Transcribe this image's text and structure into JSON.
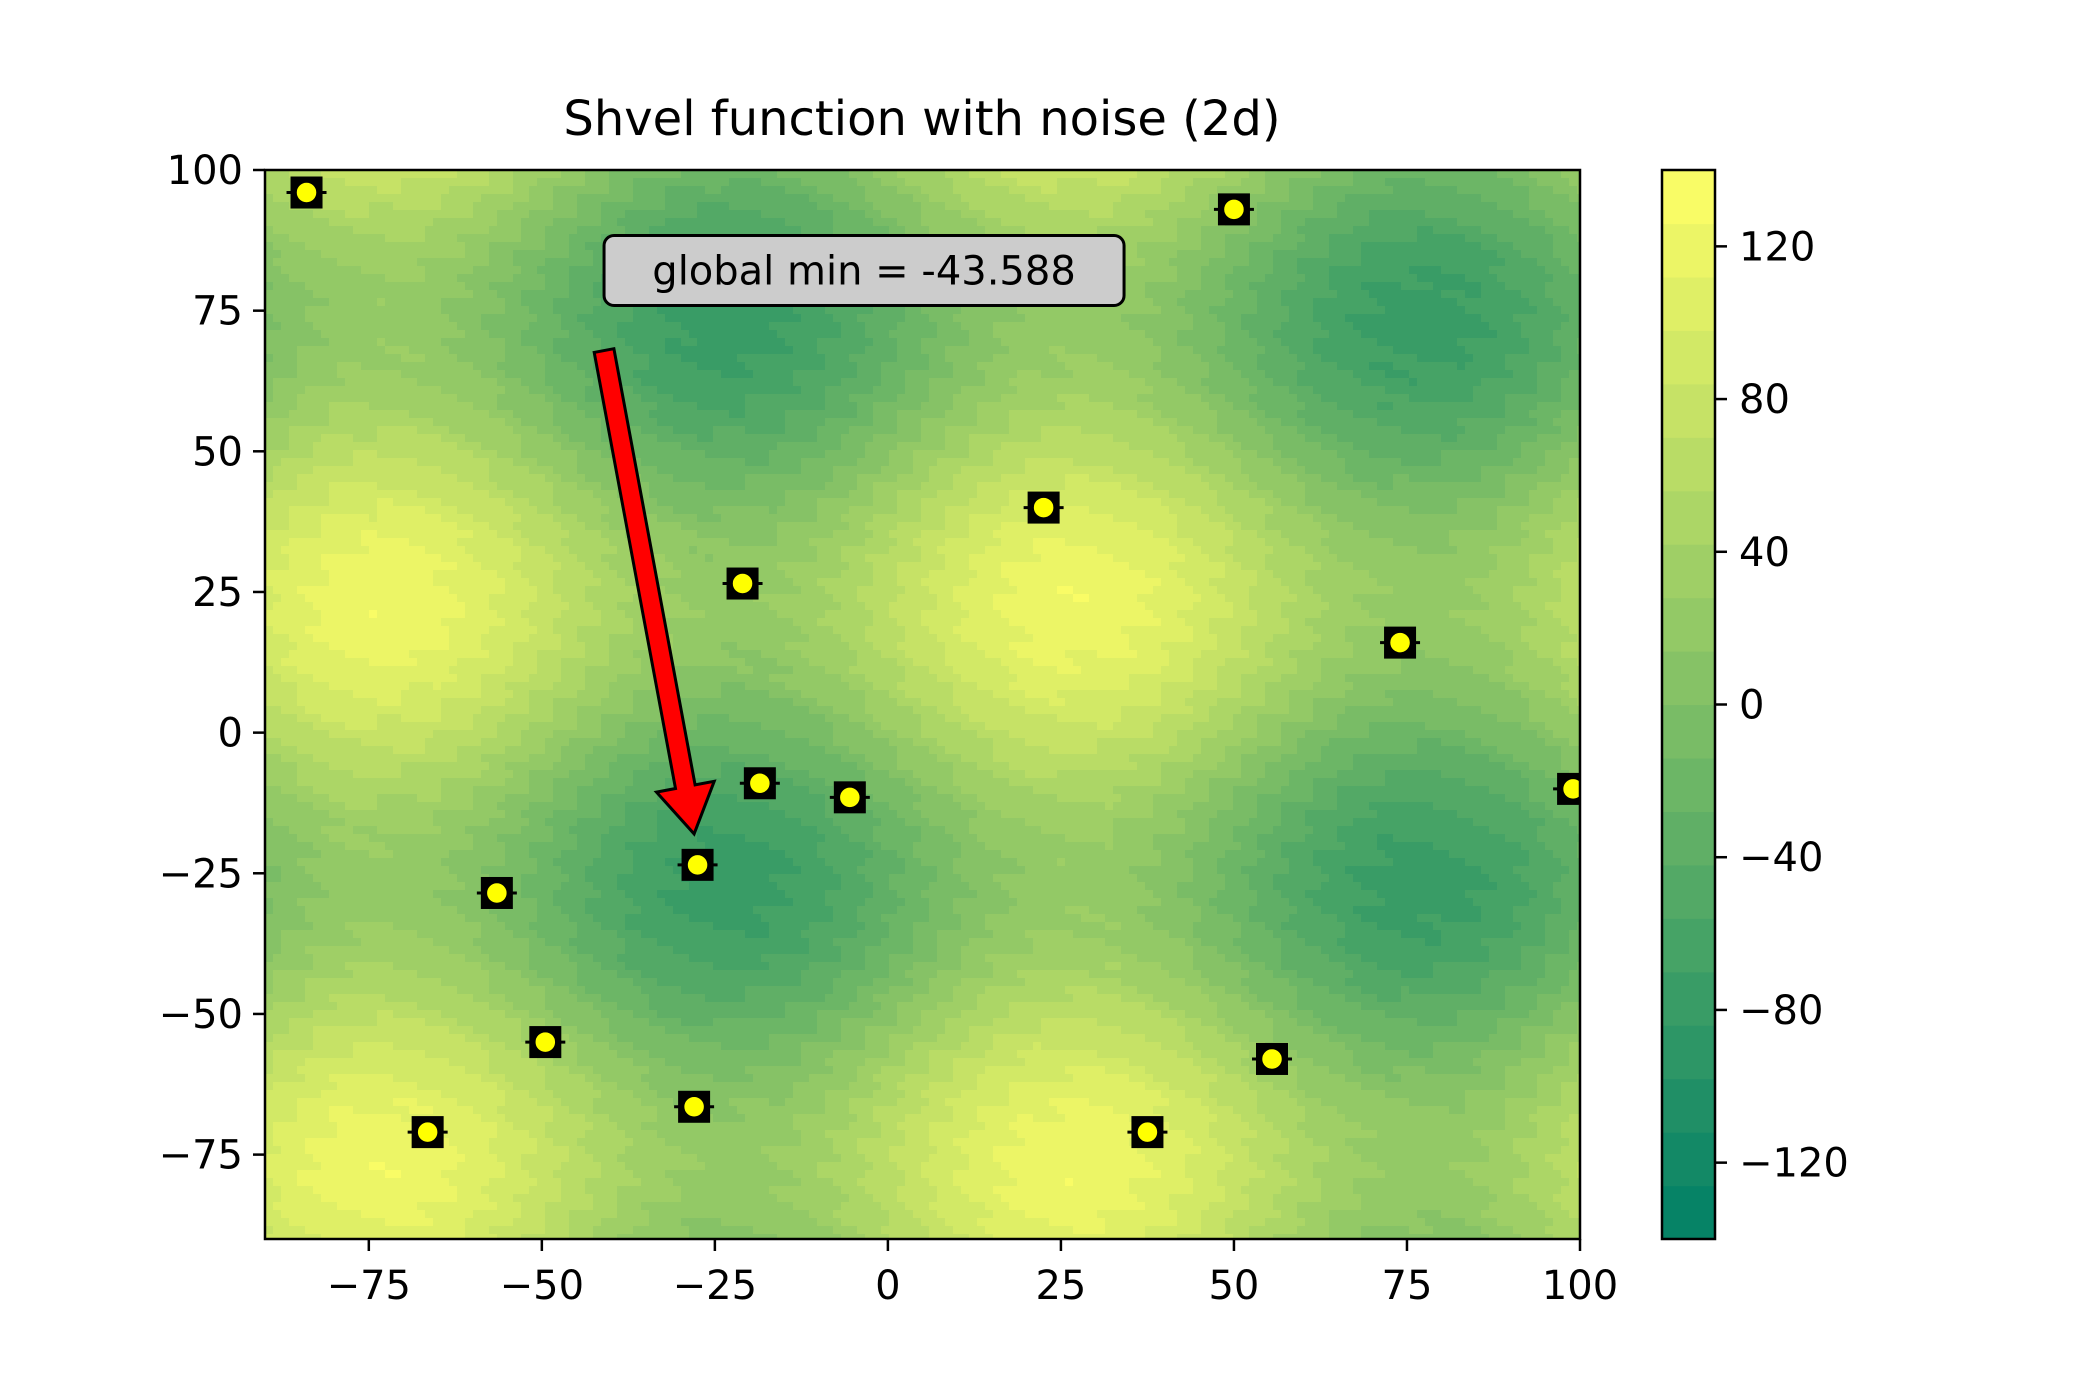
{
  "chart_data": {
    "type": "heatmap",
    "title": "Shvel function with noise (2d)",
    "xlabel": "",
    "ylabel": "",
    "xlim": [
      -90,
      100
    ],
    "ylim": [
      -90,
      100
    ],
    "x_ticks": [
      -75,
      -50,
      -25,
      0,
      25,
      50,
      75,
      100
    ],
    "y_ticks": [
      -75,
      -50,
      -25,
      0,
      25,
      50,
      75,
      100
    ],
    "x_tick_labels": [
      "−75",
      "−50",
      "−25",
      "0",
      "25",
      "50",
      "75",
      "100"
    ],
    "y_tick_labels": [
      "−75",
      "−50",
      "−25",
      "0",
      "25",
      "50",
      "75",
      "100"
    ],
    "colorbar": {
      "range": [
        -140,
        140
      ],
      "levels": 20,
      "colormap": "summer",
      "ticks": [
        -120,
        -80,
        -40,
        0,
        40,
        80,
        120
      ],
      "tick_labels": [
        "−120",
        "−80",
        "−40",
        "0",
        "40",
        "80",
        "120"
      ]
    },
    "annotation": {
      "text": "global min = -43.588",
      "point": [
        -28,
        -18
      ],
      "text_position": [
        -40,
        80
      ],
      "arrow_color": "#ff0000"
    },
    "sample_points": [
      {
        "x": -84,
        "y": 96
      },
      {
        "x": 50,
        "y": 93
      },
      {
        "x": 22.5,
        "y": 40
      },
      {
        "x": -21,
        "y": 26.5
      },
      {
        "x": 74,
        "y": 16
      },
      {
        "x": -18.5,
        "y": -9
      },
      {
        "x": -5.5,
        "y": -11.5
      },
      {
        "x": 99,
        "y": -10
      },
      {
        "x": -27.5,
        "y": -23.5
      },
      {
        "x": -56.5,
        "y": -28.5
      },
      {
        "x": -49.5,
        "y": -55
      },
      {
        "x": -66.5,
        "y": -71
      },
      {
        "x": -28,
        "y": -66.5
      },
      {
        "x": 37.5,
        "y": -71
      },
      {
        "x": 55.5,
        "y": -58
      }
    ],
    "marker_color": "#ffff00",
    "grid": false
  }
}
